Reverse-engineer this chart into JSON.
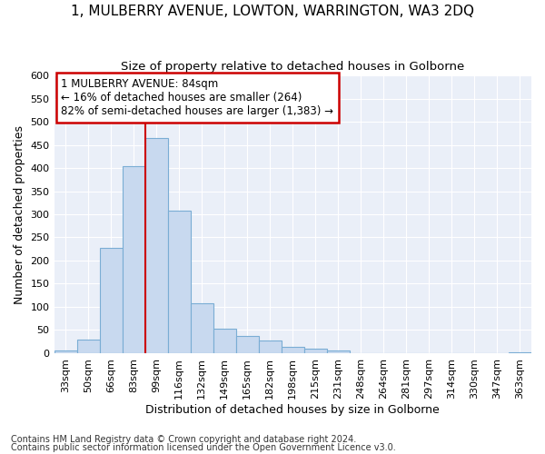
{
  "title": "1, MULBERRY AVENUE, LOWTON, WARRINGTON, WA3 2DQ",
  "subtitle": "Size of property relative to detached houses in Golborne",
  "xlabel": "Distribution of detached houses by size in Golborne",
  "ylabel": "Number of detached properties",
  "categories": [
    "33sqm",
    "50sqm",
    "66sqm",
    "83sqm",
    "99sqm",
    "116sqm",
    "132sqm",
    "149sqm",
    "165sqm",
    "182sqm",
    "198sqm",
    "215sqm",
    "231sqm",
    "248sqm",
    "264sqm",
    "281sqm",
    "297sqm",
    "314sqm",
    "330sqm",
    "347sqm",
    "363sqm"
  ],
  "values": [
    5,
    30,
    228,
    403,
    464,
    308,
    108,
    53,
    38,
    28,
    13,
    10,
    5,
    0,
    0,
    0,
    0,
    0,
    0,
    0,
    2
  ],
  "bar_color": "#c8d9ef",
  "bar_edge_color": "#7aadd4",
  "vline_x": 3.5,
  "vline_color": "#cc0000",
  "annotation_text_line1": "1 MULBERRY AVENUE: 84sqm",
  "annotation_text_line2": "← 16% of detached houses are smaller (264)",
  "annotation_text_line3": "82% of semi-detached houses are larger (1,383) →",
  "annotation_box_color": "#cc0000",
  "ylim": [
    0,
    600
  ],
  "yticks": [
    0,
    50,
    100,
    150,
    200,
    250,
    300,
    350,
    400,
    450,
    500,
    550,
    600
  ],
  "footer1": "Contains HM Land Registry data © Crown copyright and database right 2024.",
  "footer2": "Contains public sector information licensed under the Open Government Licence v3.0.",
  "bg_color": "#eaeff8",
  "grid_color": "#ffffff",
  "title_fontsize": 11,
  "subtitle_fontsize": 9.5,
  "axis_label_fontsize": 9,
  "tick_fontsize": 8,
  "annotation_fontsize": 8.5,
  "footer_fontsize": 7
}
